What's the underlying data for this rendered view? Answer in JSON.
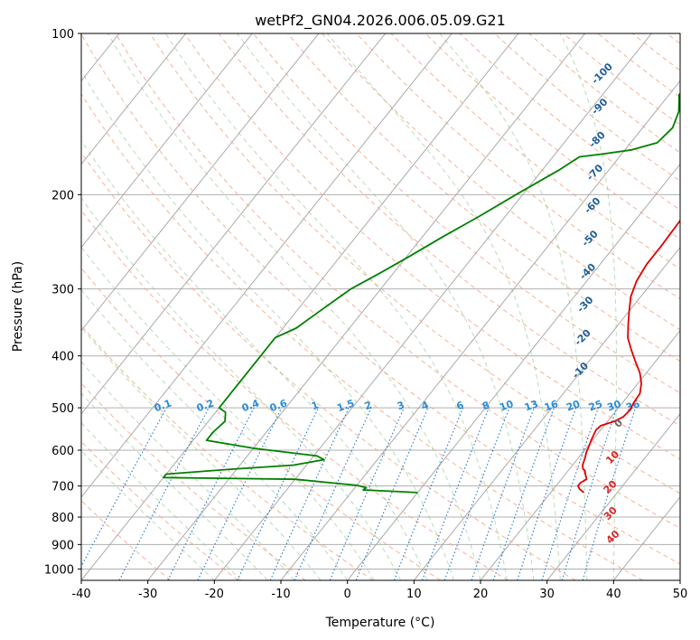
{
  "chart_data": {
    "type": "line",
    "title": "wetPf2_GN04.2026.006.05.09.G21",
    "xlabel": "Temperature (°C)",
    "ylabel": "Pressure (hPa)",
    "xlim": [
      -40,
      50
    ],
    "ylim": [
      1050,
      100
    ],
    "y_scale": "log",
    "grid": true,
    "x_ticks": [
      "-40",
      "-30",
      "-20",
      "-10",
      "0",
      "10",
      "20",
      "30",
      "40",
      "50"
    ],
    "y_ticks": [
      "1000",
      "900",
      "800",
      "700",
      "600",
      "500",
      "400",
      "300",
      "200",
      "100"
    ],
    "colors": {
      "temperature": "#e00000",
      "dewpoint": "#008000",
      "dry_adiabat": "#f4a582",
      "moist_adiabat": "#7fbf7f",
      "mixing_ratio": "#1f78d1",
      "isotherm": "#888888"
    },
    "series": [
      {
        "points": [
          [
            25.0,
            720
          ],
          [
            24.0,
            710
          ],
          [
            23.3,
            700
          ],
          [
            23.3,
            690
          ],
          [
            23.8,
            680
          ],
          [
            23.0,
            665
          ],
          [
            22.5,
            655
          ],
          [
            22.0,
            650
          ],
          [
            21.5,
            640
          ],
          [
            21.0,
            620
          ],
          [
            20.5,
            605
          ],
          [
            20.2,
            590
          ],
          [
            19.8,
            575
          ],
          [
            19.5,
            560
          ],
          [
            19.3,
            550
          ],
          [
            19.5,
            540
          ],
          [
            21.0,
            530
          ],
          [
            21.8,
            520
          ],
          [
            22.0,
            505
          ],
          [
            21.7,
            490
          ],
          [
            21.5,
            470
          ],
          [
            20.5,
            450
          ],
          [
            19.0,
            430
          ],
          [
            17.0,
            410
          ],
          [
            15.0,
            390
          ],
          [
            13.0,
            370
          ],
          [
            11.5,
            350
          ],
          [
            10.0,
            330
          ],
          [
            8.5,
            310
          ],
          [
            7.5,
            290
          ],
          [
            7.0,
            270
          ],
          [
            7.0,
            250
          ],
          [
            6.8,
            225
          ],
          [
            6.5,
            200
          ],
          [
            6.3,
            185
          ],
          [
            6.0,
            170
          ],
          [
            5.6,
            155
          ],
          [
            5.5,
            140
          ],
          [
            5.8,
            130
          ],
          [
            6.5,
            120
          ],
          [
            7.2,
            112
          ],
          [
            7.3,
            106
          ],
          [
            7.0,
            100
          ]
        ]
      },
      {
        "points": [
          [
            0.0,
            720
          ],
          [
            -5.0,
            715
          ],
          [
            -8.5,
            712
          ],
          [
            -8.3,
            705
          ],
          [
            -10.0,
            698
          ],
          [
            -20.0,
            680
          ],
          [
            -40.0,
            675
          ],
          [
            -40.0,
            665
          ],
          [
            -30.0,
            650
          ],
          [
            -22.0,
            640
          ],
          [
            -18.0,
            625
          ],
          [
            -19.5,
            615
          ],
          [
            -30.0,
            595
          ],
          [
            -38.0,
            575
          ],
          [
            -38.0,
            555
          ],
          [
            -37.5,
            530
          ],
          [
            -38.5,
            510
          ],
          [
            -40.0,
            500
          ],
          [
            -40.0,
            370
          ],
          [
            -38.0,
            355
          ],
          [
            -36.5,
            330
          ],
          [
            -34.5,
            300
          ],
          [
            -32.0,
            280
          ],
          [
            -29.5,
            260
          ],
          [
            -27.0,
            240
          ],
          [
            -24.0,
            220
          ],
          [
            -21.0,
            200
          ],
          [
            -17.5,
            180
          ],
          [
            -16.0,
            170
          ],
          [
            -13.0,
            168
          ],
          [
            -9.0,
            165
          ],
          [
            -6.0,
            160
          ],
          [
            -5.5,
            150
          ],
          [
            -6.5,
            140
          ],
          [
            -8.5,
            130
          ],
          [
            -7.0,
            120
          ],
          [
            -3.0,
            114
          ],
          [
            -1.0,
            108
          ],
          [
            0.0,
            100
          ]
        ]
      }
    ],
    "dry_adiabat_labels": [
      "-100",
      "-90",
      "-80",
      "-70",
      "-60",
      "-50",
      "-40",
      "-30",
      "-20",
      "-10"
    ],
    "moist_adiabat_labels": [
      "0",
      "10",
      "20",
      "30",
      "40"
    ],
    "mixing_ratio_labels": [
      "0.1",
      "0.2",
      "0.4",
      "0.6",
      "1",
      "1.5",
      "2",
      "3",
      "4",
      "6",
      "8",
      "10",
      "13",
      "16",
      "20",
      "25",
      "30",
      "36"
    ]
  }
}
